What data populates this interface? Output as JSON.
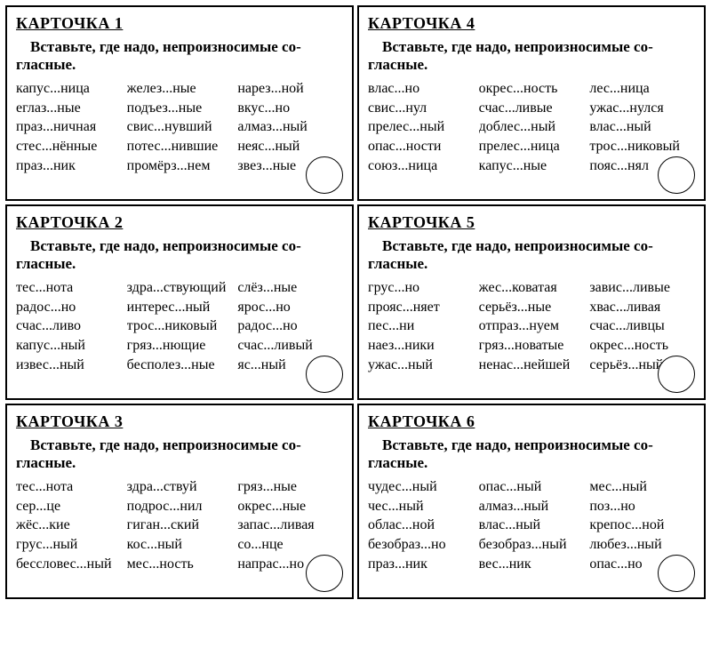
{
  "task_text": "Вставьте, где надо, непроизносимые со­гласные.",
  "cards": [
    {
      "title": "КАРТОЧКА  1",
      "words": [
        "капус...ница",
        "желез...ные",
        "нарез...ной",
        "еглаз...ные",
        "подъез...ные",
        "вкус...но",
        "праз...ничная",
        "свис...нувший",
        "алмаз...ный",
        "стес...нённые",
        "потес...нившие",
        "неяс...ный",
        "праз...ник",
        "промёрз...нем",
        "звез...ные"
      ]
    },
    {
      "title": "КАРТОЧКА  2",
      "words": [
        "тес...нота",
        "здра...ствующий",
        "слёз...ные",
        "радос...но",
        "интерес...ный",
        "ярос...но",
        "счас...ливо",
        "трос...никовый",
        "радос...но",
        "капус...ный",
        "гряз...нющие",
        "счас...ливый",
        "извес...ный",
        "бесполез...ные",
        "яс...ный"
      ]
    },
    {
      "title": "КАРТОЧКА  3",
      "words": [
        "тес...нота",
        "здра...ствуй",
        "гряз...ные",
        "сер...це",
        "подрос...нил",
        "окрес...ные",
        "жёс...кие",
        "гиган...ский",
        "запас...ливая",
        "грус...ный",
        "кос...ный",
        "со...нце",
        "бессловес...ный",
        "мес...ность",
        "напрас...но"
      ]
    },
    {
      "title": "КАРТОЧКА  4",
      "words": [
        "влас...но",
        "окрес...ность",
        "лес...ница",
        "свис...нул",
        "счас...ливые",
        "ужас...нулся",
        "прелес...ный",
        "доблес...ный",
        "влас...ный",
        "опас...ности",
        "прелес...ница",
        "трос...никовый",
        "союз...ница",
        "капус...ные",
        "пояс...нял"
      ]
    },
    {
      "title": "КАРТОЧКА  5",
      "words": [
        "грус...но",
        "жес...коватая",
        "завис...ливые",
        "прояс...няет",
        "серьёз...ные",
        "хвас...ливая",
        "пес...ни",
        "отпраз...нуем",
        "счас...ливцы",
        "наез...ники",
        "гряз...новатые",
        "окрес...ность",
        "ужас...ный",
        "ненас...нейшей",
        "серьёз...ный"
      ]
    },
    {
      "title": "КАРТОЧКА  6",
      "words": [
        "чудес...ный",
        "опас...ный",
        "мес...ный",
        "чес...ный",
        "алмаз...ный",
        "поз...но",
        "облас...ной",
        "влас...ный",
        "крепос...ной",
        "безобраз...но",
        "безобраз...ный",
        "любез...ный",
        "праз...ник",
        "вес...ник",
        "опас...но"
      ]
    }
  ]
}
